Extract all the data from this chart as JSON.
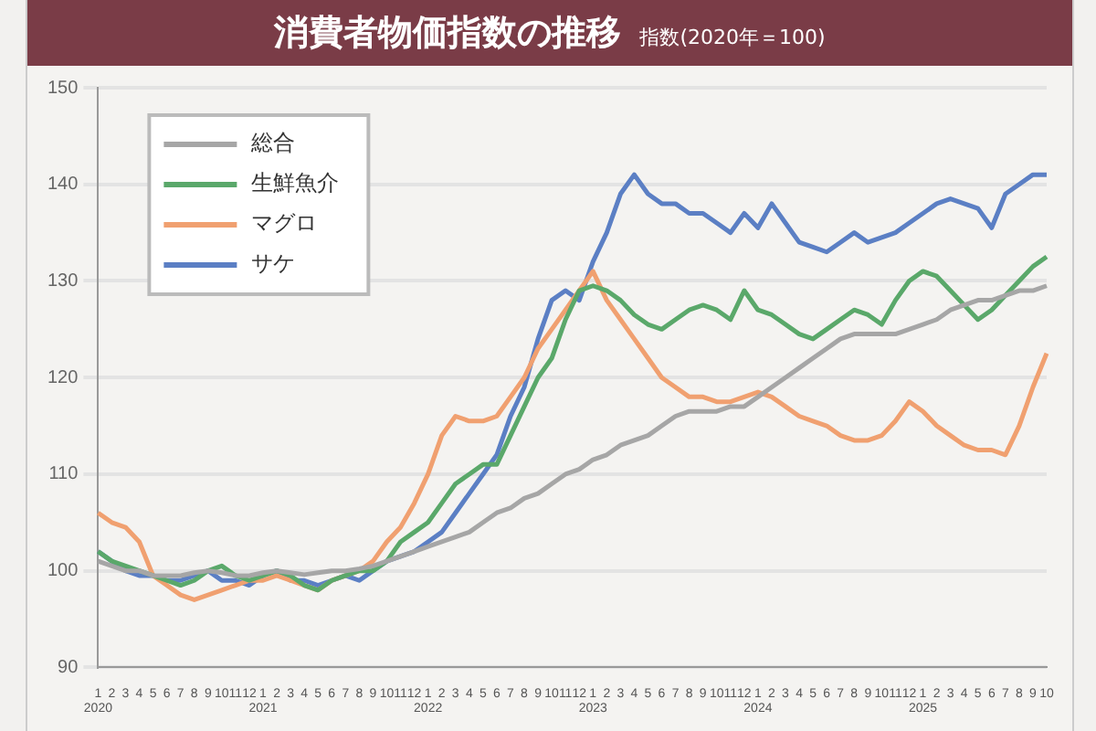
{
  "chart_data": {
    "type": "line",
    "title": "消費者物価指数の推移",
    "subtitle": "指数(2020年＝100)",
    "categories": [
      "1\n2020",
      "2",
      "3",
      "4",
      "5",
      "6",
      "7",
      "8",
      "9",
      "10",
      "11",
      "12",
      "1\n2021",
      "2",
      "3",
      "4",
      "5",
      "6",
      "7",
      "8",
      "9",
      "10",
      "11",
      "12",
      "1\n2022",
      "2",
      "3",
      "4",
      "5",
      "6",
      "7",
      "8",
      "9",
      "10",
      "11",
      "12",
      "1\n2023",
      "2",
      "3",
      "4",
      "5",
      "6",
      "7",
      "8",
      "9",
      "10",
      "11",
      "12",
      "1\n2024",
      "2",
      "3",
      "4",
      "5",
      "6",
      "7",
      "8",
      "9",
      "10",
      "11",
      "12",
      "1\n2025",
      "2",
      "3",
      "4",
      "5",
      "6",
      "7",
      "8",
      "9",
      "10"
    ],
    "series": [
      {
        "name": "総合",
        "color": "#a6a6a6",
        "values": [
          101,
          100.5,
          100,
          100,
          99.5,
          99.5,
          99.5,
          99.8,
          100,
          99.8,
          99.5,
          99.5,
          99.8,
          100,
          99.8,
          99.6,
          99.8,
          100,
          100,
          100.2,
          100.5,
          101,
          101.5,
          102,
          102.5,
          103,
          103.5,
          104,
          105,
          106,
          106.5,
          107.5,
          108,
          109,
          110,
          110.5,
          111.5,
          112,
          113,
          113.5,
          114,
          115,
          116,
          116.5,
          116.5,
          116.5,
          117,
          117,
          118,
          119,
          120,
          121,
          122,
          123,
          124,
          124.5,
          124.5,
          124.5,
          124.5,
          125,
          125.5,
          126,
          127,
          127.5,
          128,
          128,
          128.5,
          129,
          129,
          129.5
        ]
      },
      {
        "name": "生鮮魚介",
        "color": "#5aa86a",
        "values": [
          102,
          101,
          100.5,
          100,
          99.5,
          99,
          98.5,
          99,
          100,
          100.5,
          99.5,
          99,
          99.5,
          100,
          99.5,
          98.5,
          98,
          99,
          99.5,
          100,
          100,
          101,
          103,
          104,
          105,
          107,
          109,
          110,
          111,
          111,
          114,
          117,
          120,
          122,
          126,
          129,
          129.5,
          129,
          128,
          126.5,
          125.5,
          125,
          126,
          127,
          127.5,
          127,
          126,
          129,
          127,
          126.5,
          125.5,
          124.5,
          124,
          125,
          126,
          127,
          126.5,
          125.5,
          128,
          130,
          131,
          130.5,
          129,
          127.5,
          126,
          127,
          128.5,
          130,
          131.5,
          132.5
        ]
      },
      {
        "name": "マグロ",
        "color": "#f0a070",
        "values": [
          106,
          105,
          104.5,
          103,
          99.5,
          98.5,
          97.5,
          97,
          97.5,
          98,
          98.5,
          99,
          99,
          99.5,
          99,
          98.5,
          98,
          99,
          99.5,
          100,
          101,
          103,
          104.5,
          107,
          110,
          114,
          116,
          115.5,
          115.5,
          116,
          118,
          120,
          123,
          125,
          127,
          129,
          131,
          128,
          126,
          124,
          122,
          120,
          119,
          118,
          118,
          117.5,
          117.5,
          118,
          118.5,
          118,
          117,
          116,
          115.5,
          115,
          114,
          113.5,
          113.5,
          114,
          115.5,
          117.5,
          116.5,
          115,
          114,
          113,
          112.5,
          112.5,
          112,
          115,
          119,
          122.5
        ]
      },
      {
        "name": "サケ",
        "color": "#5b7fc4",
        "values": [
          102,
          101,
          100,
          99.5,
          99.5,
          99,
          99,
          99.5,
          100,
          99,
          99,
          98.5,
          99.5,
          100,
          99,
          99,
          98.5,
          99,
          99.5,
          99,
          100,
          101,
          101.5,
          102,
          103,
          104,
          106,
          108,
          110,
          112,
          116,
          119,
          124,
          128,
          129,
          128,
          132,
          135,
          139,
          141,
          139,
          138,
          138,
          137,
          137,
          136,
          135,
          137,
          135.5,
          138,
          136,
          134,
          133.5,
          133,
          134,
          135,
          134,
          134.5,
          135,
          136,
          137,
          138,
          138.5,
          138,
          137.5,
          135.5,
          139,
          140,
          141,
          141
        ]
      }
    ],
    "ylim": [
      90,
      150
    ],
    "yticks": [
      90,
      100,
      110,
      120,
      130,
      140,
      150
    ],
    "grid": "y",
    "legend": "top left",
    "marker": "none",
    "line_style": "solid"
  }
}
